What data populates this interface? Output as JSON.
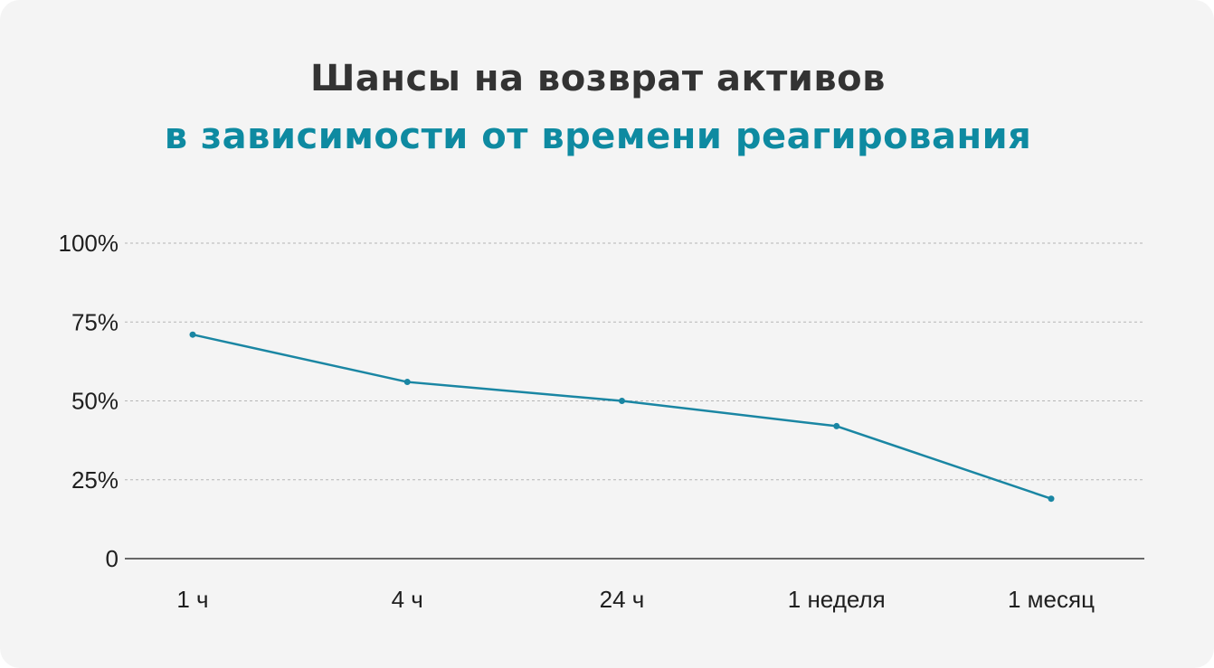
{
  "chart_data": {
    "type": "line",
    "title": "Шансы на возврат активов",
    "subtitle": "в зависимости от времени реагирования",
    "categories": [
      "1 ч",
      "4 ч",
      "24 ч",
      "1 неделя",
      "1 месяц"
    ],
    "values": [
      71,
      56,
      50,
      42,
      19
    ],
    "ylim": [
      0,
      100
    ],
    "y_ticks": [
      {
        "value": 0,
        "label": "0"
      },
      {
        "value": 25,
        "label": "25%"
      },
      {
        "value": 50,
        "label": "50%"
      },
      {
        "value": 75,
        "label": "75%"
      },
      {
        "value": 100,
        "label": "100%"
      }
    ],
    "grid": true,
    "line_color": "#1a86a3",
    "title_color": "#333333",
    "subtitle_color": "#0e8aa1"
  }
}
